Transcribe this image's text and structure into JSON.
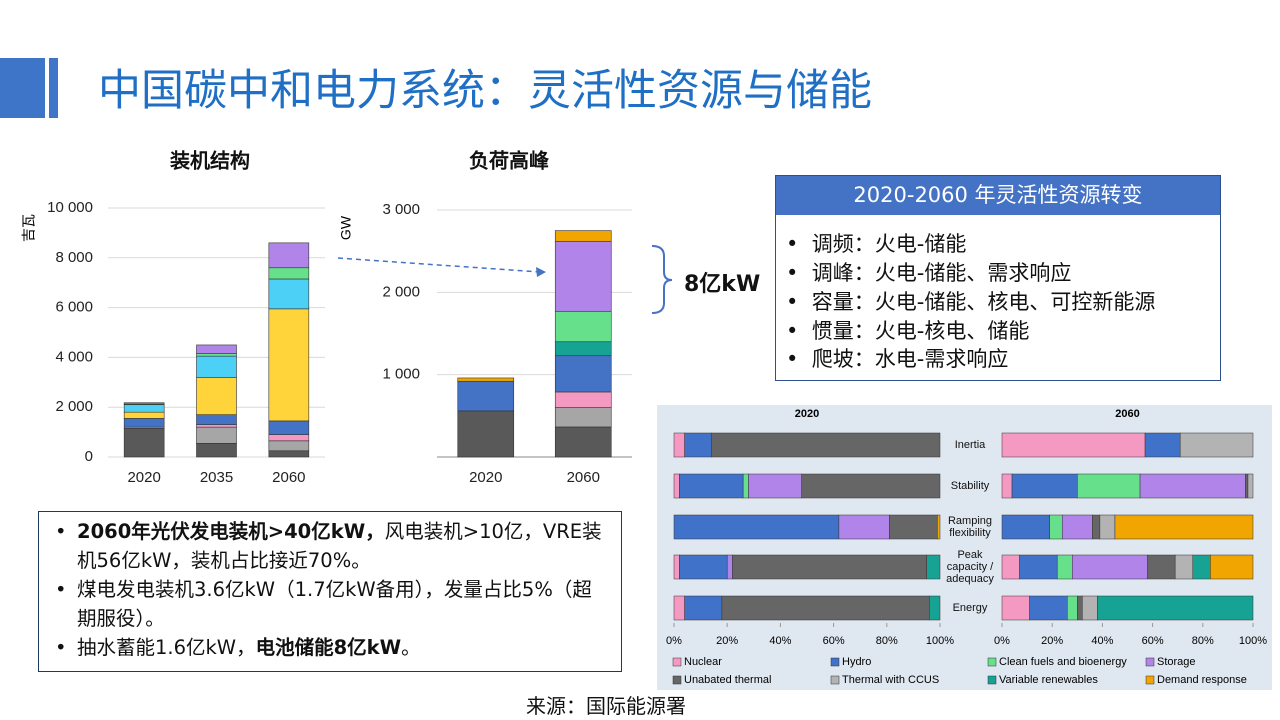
{
  "slide": {
    "title": "中国碳中和电力系统：灵活性资源与储能"
  },
  "annotation": "8亿kW",
  "box": {
    "title": "2020-2060 年灵活性资源转变",
    "items": [
      "调频：火电-储能",
      "调峰：火电-储能、需求响应",
      "容量：火电-储能、核电、可控新能源",
      "惯量：火电-核电、储能",
      "爬坡：水电-需求响应"
    ]
  },
  "notes": {
    "items": [
      [
        {
          "text": "2060年光伏发电装机>40亿kW，",
          "bold": true
        },
        {
          "text": "风电装机>10亿，VRE装机56亿kW，装机占比接近70%。"
        }
      ],
      [
        {
          "text": "煤电发电装机3.6亿kW（1.7亿kW备用），发量占比5%（超期服役）。"
        }
      ],
      [
        {
          "text": "抽水蓄能1.6亿kW，"
        },
        {
          "text": "电池储能8亿kW",
          "bold": true
        },
        {
          "text": "。"
        }
      ]
    ]
  },
  "source": "来源：国际能源署",
  "chart_data": [
    {
      "type": "bar",
      "stacked": true,
      "title": "装机结构",
      "y_label": "吉瓦",
      "categories": [
        "2020",
        "2035",
        "2060"
      ],
      "series": [
        {
          "color": "#595959",
          "values": [
            1150,
            550,
            250
          ]
        },
        {
          "color": "#a6a6a6",
          "values": [
            0,
            650,
            400
          ]
        },
        {
          "color": "#f49ac2",
          "values": [
            50,
            100,
            250
          ]
        },
        {
          "color": "#4472c4",
          "values": [
            350,
            400,
            550
          ]
        },
        {
          "color": "#ffd43b",
          "values": [
            250,
            1500,
            4500
          ]
        },
        {
          "color": "#4dd0f5",
          "values": [
            300,
            850,
            1200
          ]
        },
        {
          "color": "#66e08a",
          "values": [
            30,
            100,
            450
          ]
        },
        {
          "color": "#b084e8",
          "values": [
            50,
            350,
            1000
          ]
        }
      ],
      "ylim": [
        0,
        10000
      ],
      "yticks": [
        0,
        {
          "value": 2000,
          "label": "2 000"
        },
        {
          "value": 4000,
          "label": "4 000"
        },
        {
          "value": 6000,
          "label": "6 000"
        },
        {
          "value": 8000,
          "label": "8 000"
        },
        {
          "value": 10000,
          "label": "10 000"
        }
      ],
      "grid": true
    },
    {
      "type": "bar",
      "stacked": true,
      "title": "负荷高峰",
      "y_label": "GW",
      "categories": [
        "2020",
        "2060"
      ],
      "series": [
        {
          "color": "#595959",
          "values": [
            560,
            365
          ]
        },
        {
          "color": "#a6a6a6",
          "values": [
            0,
            235
          ]
        },
        {
          "color": "#f49ac2",
          "values": [
            0,
            190
          ]
        },
        {
          "color": "#4472c4",
          "values": [
            360,
            440
          ]
        },
        {
          "color": "#16a394",
          "values": [
            0,
            170
          ]
        },
        {
          "color": "#66e08a",
          "values": [
            0,
            370
          ]
        },
        {
          "color": "#b084e8",
          "values": [
            0,
            850
          ]
        },
        {
          "color": "#f0a500",
          "values": [
            40,
            130
          ]
        }
      ],
      "ylim": [
        0,
        3000
      ],
      "yticks": [
        {
          "value": 1000,
          "label": "1 000"
        },
        {
          "value": 2000,
          "label": "2 000"
        },
        {
          "value": 3000,
          "label": "3 000"
        }
      ],
      "grid": true
    },
    {
      "type": "hbar",
      "stacked": true,
      "panels": [
        "2020",
        "2060"
      ],
      "categories": [
        "Inertia",
        "Stability",
        "Ramping flexibility",
        "Peak capacity / adequacy",
        "Energy"
      ],
      "series": [
        {
          "name": "Nuclear",
          "color": "#f49ac2",
          "values": [
            [
              4,
              2,
              0,
              2,
              4
            ],
            [
              57,
              4,
              0,
              7,
              11
            ]
          ]
        },
        {
          "name": "Hydro",
          "color": "#3f72c8",
          "values": [
            [
              10,
              24,
              62,
              18,
              14
            ],
            [
              14,
              26,
              19,
              15,
              15
            ]
          ]
        },
        {
          "name": "Clean fuels and bioenergy",
          "color": "#66e08a",
          "values": [
            [
              0,
              2,
              0,
              0,
              0
            ],
            [
              0,
              25,
              5,
              6,
              4
            ]
          ]
        },
        {
          "name": "Storage",
          "color": "#b084e8",
          "values": [
            [
              0,
              20,
              19,
              2,
              0
            ],
            [
              0,
              42,
              12,
              30,
              0
            ]
          ]
        },
        {
          "name": "Unabated thermal",
          "color": "#666666",
          "values": [
            [
              86,
              52,
              18,
              73,
              78
            ],
            [
              0,
              1,
              3,
              11,
              2
            ]
          ]
        },
        {
          "name": "Thermal with CCUS",
          "color": "#b3b3b3",
          "values": [
            [
              0,
              0,
              0,
              0,
              0
            ],
            [
              29,
              2,
              6,
              7,
              6
            ]
          ]
        },
        {
          "name": "Variable renewables",
          "color": "#16a394",
          "values": [
            [
              0,
              0,
              0,
              5,
              4
            ],
            [
              0,
              0,
              0,
              7,
              62
            ]
          ]
        },
        {
          "name": "Demand response",
          "color": "#f0a500",
          "values": [
            [
              0,
              0,
              1,
              0,
              0
            ],
            [
              0,
              0,
              55,
              17,
              0
            ]
          ]
        }
      ],
      "xlim": [
        0,
        100
      ],
      "xticks": [
        {
          "value": 0,
          "label": "0%"
        },
        {
          "value": 20,
          "label": "20%"
        },
        {
          "value": 40,
          "label": "40%"
        },
        {
          "value": 60,
          "label": "60%"
        },
        {
          "value": 80,
          "label": "80%"
        },
        {
          "value": 100,
          "label": "100%"
        }
      ]
    }
  ]
}
